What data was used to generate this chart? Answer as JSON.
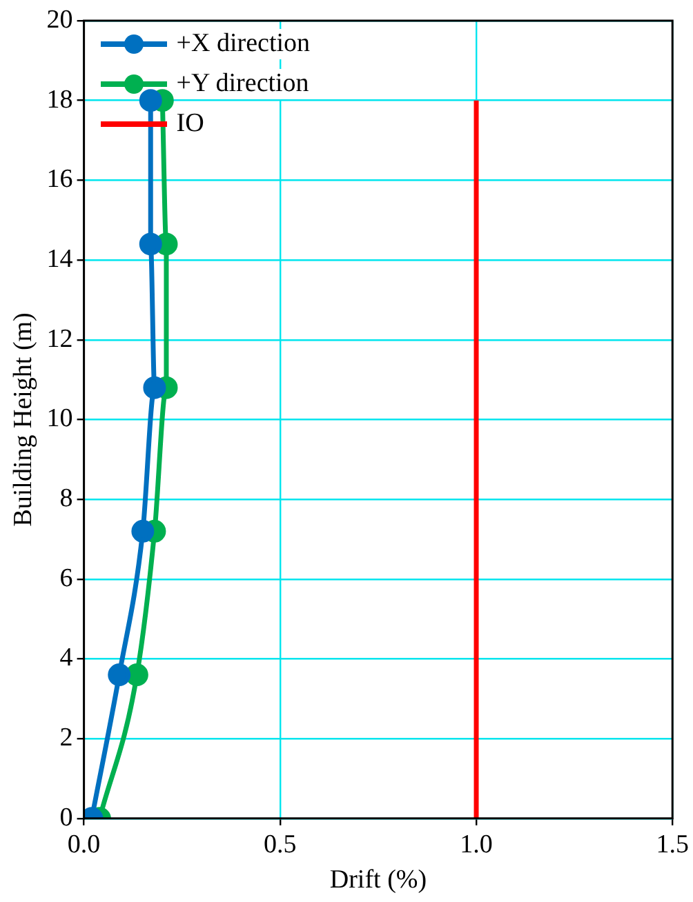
{
  "chart_data": {
    "type": "line",
    "xlabel": "Drift (%)",
    "ylabel": "Building Height (m)",
    "xlim": [
      0,
      1.5
    ],
    "xticks": [
      {
        "value": 0,
        "label": "0.0"
      },
      {
        "value": 0.5,
        "label": "0.5"
      },
      {
        "value": 1,
        "label": "1.0"
      },
      {
        "value": 1.5,
        "label": "1.5"
      }
    ],
    "ylim": [
      0,
      20
    ],
    "yticks": [
      0,
      2,
      4,
      6,
      8,
      10,
      12,
      14,
      16,
      18,
      20
    ],
    "grid": true,
    "legend": "top left",
    "marker": "circle",
    "line_style": "solid",
    "series": [
      {
        "name": "+X direction",
        "color": "#0070c0",
        "x": [
          0.02,
          0.09,
          0.15,
          0.18,
          0.17,
          0.17
        ],
        "values": [
          0,
          3.6,
          7.2,
          10.8,
          14.4,
          18
        ]
      },
      {
        "name": "+Y direction",
        "color": "#00b050",
        "x": [
          0.04,
          0.135,
          0.18,
          0.21,
          0.21,
          0.2
        ],
        "values": [
          0,
          3.6,
          7.2,
          10.8,
          14.4,
          18
        ]
      },
      {
        "name": "IO",
        "color": "#ff0000",
        "marker": "none",
        "x": [
          1,
          1
        ],
        "values": [
          0,
          18
        ]
      }
    ]
  }
}
